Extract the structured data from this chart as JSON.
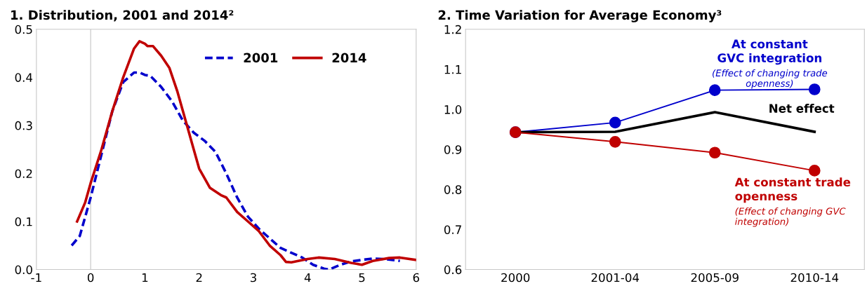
{
  "chart_data": [
    {
      "type": "line",
      "title": "1. Distribution, 2001 and 2014²",
      "xlim": [
        -1,
        6
      ],
      "xticks": [
        -1,
        0,
        1,
        2,
        3,
        4,
        5,
        6
      ],
      "ylim": [
        0.0,
        0.5
      ],
      "yticks": [
        {
          "value": 0,
          "label": "0.0"
        },
        0.1,
        0.2,
        0.3,
        0.4,
        0.5
      ],
      "grid": false,
      "legend": "top right",
      "ref_lines": [
        {
          "axis": "x",
          "value": 0,
          "color": "#d0d0d0"
        }
      ],
      "series": [
        {
          "name": "2001",
          "color": "#0000cc",
          "line_style": "dashed",
          "x": [
            -0.35,
            -0.2,
            0,
            0.2,
            0.4,
            0.6,
            0.8,
            0.9,
            1.0,
            1.1,
            1.3,
            1.5,
            1.7,
            1.9,
            2.1,
            2.3,
            2.5,
            2.7,
            2.9,
            3.1,
            3.3,
            3.5,
            3.7,
            3.9,
            4.1,
            4.3,
            4.4,
            4.6,
            4.8,
            5.0,
            5.2,
            5.4,
            5.7
          ],
          "values": [
            0.05,
            0.07,
            0.15,
            0.24,
            0.33,
            0.39,
            0.41,
            0.41,
            0.405,
            0.403,
            0.38,
            0.35,
            0.31,
            0.285,
            0.268,
            0.245,
            0.2,
            0.15,
            0.11,
            0.085,
            0.065,
            0.045,
            0.035,
            0.025,
            0.01,
            0.002,
            0.0,
            0.01,
            0.017,
            0.02,
            0.023,
            0.022,
            0.018
          ]
        },
        {
          "name": "2014",
          "color": "#c00000",
          "line_style": "solid",
          "x": [
            -0.25,
            -0.1,
            0,
            0.2,
            0.4,
            0.6,
            0.8,
            0.9,
            1.0,
            1.05,
            1.15,
            1.3,
            1.45,
            1.6,
            1.8,
            1.9,
            2.0,
            2.2,
            2.4,
            2.5,
            2.7,
            2.9,
            3.1,
            3.3,
            3.5,
            3.6,
            3.7,
            4.0,
            4.2,
            4.5,
            4.8,
            5.0,
            5.2,
            5.5,
            5.7,
            6.0
          ],
          "values": [
            0.1,
            0.14,
            0.18,
            0.25,
            0.33,
            0.4,
            0.46,
            0.475,
            0.47,
            0.465,
            0.465,
            0.445,
            0.42,
            0.37,
            0.29,
            0.25,
            0.21,
            0.17,
            0.155,
            0.15,
            0.12,
            0.1,
            0.08,
            0.05,
            0.03,
            0.016,
            0.015,
            0.022,
            0.025,
            0.022,
            0.014,
            0.01,
            0.018,
            0.024,
            0.025,
            0.02
          ]
        }
      ]
    },
    {
      "type": "line",
      "title": "2. Time Variation for Average Economy³",
      "categories": [
        "2000",
        "2001-04",
        "2005-09",
        "2010-14"
      ],
      "ylim": [
        0.6,
        1.2
      ],
      "yticks": [
        0.6,
        0.7,
        0.8,
        0.9,
        {
          "value": 1,
          "label": "1.0"
        },
        1.1,
        1.2
      ],
      "grid": false,
      "legend": false,
      "annotations": [
        "(Effect of changing trade openness)",
        "(Effect of changing GVC integration)"
      ],
      "series": [
        {
          "name": "At constant GVC integration",
          "color": "#0000cc",
          "marker": "circle",
          "values": [
            0.943,
            0.967,
            1.048,
            1.05
          ]
        },
        {
          "name": "Net effect",
          "color": "#000000",
          "marker": "none",
          "values": [
            0.943,
            0.944,
            0.993,
            0.944
          ]
        },
        {
          "name": "At constant trade openness",
          "color": "#c00000",
          "marker": "circle",
          "values": [
            0.943,
            0.919,
            0.892,
            0.847
          ]
        }
      ]
    }
  ]
}
